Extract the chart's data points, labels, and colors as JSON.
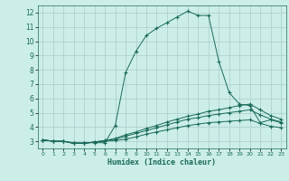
{
  "title": "",
  "xlabel": "Humidex (Indice chaleur)",
  "background_color": "#cceee8",
  "grid_color": "#aacccc",
  "line_color": "#1a6b5a",
  "xlim": [
    -0.5,
    23.5
  ],
  "ylim": [
    2.5,
    12.5
  ],
  "xticks": [
    0,
    1,
    2,
    3,
    4,
    5,
    6,
    7,
    8,
    9,
    10,
    11,
    12,
    13,
    14,
    15,
    16,
    17,
    18,
    19,
    20,
    21,
    22,
    23
  ],
  "yticks": [
    3,
    4,
    5,
    6,
    7,
    8,
    9,
    10,
    11,
    12
  ],
  "line1_x": [
    0,
    1,
    2,
    3,
    4,
    5,
    6,
    7,
    8,
    9,
    10,
    11,
    12,
    13,
    14,
    15,
    16,
    17,
    18,
    19,
    20,
    21,
    22,
    23
  ],
  "line1_y": [
    3.1,
    3.0,
    3.0,
    2.9,
    2.9,
    2.9,
    2.9,
    4.1,
    7.8,
    9.3,
    10.4,
    10.9,
    11.3,
    11.7,
    12.1,
    11.8,
    11.8,
    8.6,
    6.4,
    5.6,
    5.5,
    4.3,
    4.5,
    4.3
  ],
  "line2_x": [
    0,
    1,
    2,
    3,
    4,
    5,
    6,
    7,
    8,
    9,
    10,
    11,
    12,
    13,
    14,
    15,
    16,
    17,
    18,
    19,
    20,
    21,
    22,
    23
  ],
  "line2_y": [
    3.1,
    3.0,
    3.0,
    2.85,
    2.85,
    2.95,
    3.0,
    3.05,
    3.15,
    3.3,
    3.5,
    3.65,
    3.8,
    3.95,
    4.1,
    4.2,
    4.3,
    4.35,
    4.4,
    4.45,
    4.5,
    4.25,
    4.05,
    3.95
  ],
  "line3_x": [
    0,
    1,
    2,
    3,
    4,
    5,
    6,
    7,
    8,
    9,
    10,
    11,
    12,
    13,
    14,
    15,
    16,
    17,
    18,
    19,
    20,
    21,
    22,
    23
  ],
  "line3_y": [
    3.1,
    3.0,
    3.0,
    2.85,
    2.85,
    2.95,
    3.05,
    3.15,
    3.35,
    3.55,
    3.75,
    3.95,
    4.15,
    4.35,
    4.55,
    4.65,
    4.8,
    4.9,
    5.0,
    5.1,
    5.2,
    4.85,
    4.55,
    4.35
  ],
  "line4_x": [
    0,
    1,
    2,
    3,
    4,
    5,
    6,
    7,
    8,
    9,
    10,
    11,
    12,
    13,
    14,
    15,
    16,
    17,
    18,
    19,
    20,
    21,
    22,
    23
  ],
  "line4_y": [
    3.1,
    3.0,
    3.0,
    2.85,
    2.85,
    2.95,
    3.05,
    3.2,
    3.45,
    3.65,
    3.9,
    4.1,
    4.35,
    4.55,
    4.75,
    4.9,
    5.1,
    5.2,
    5.35,
    5.5,
    5.6,
    5.2,
    4.8,
    4.55
  ]
}
